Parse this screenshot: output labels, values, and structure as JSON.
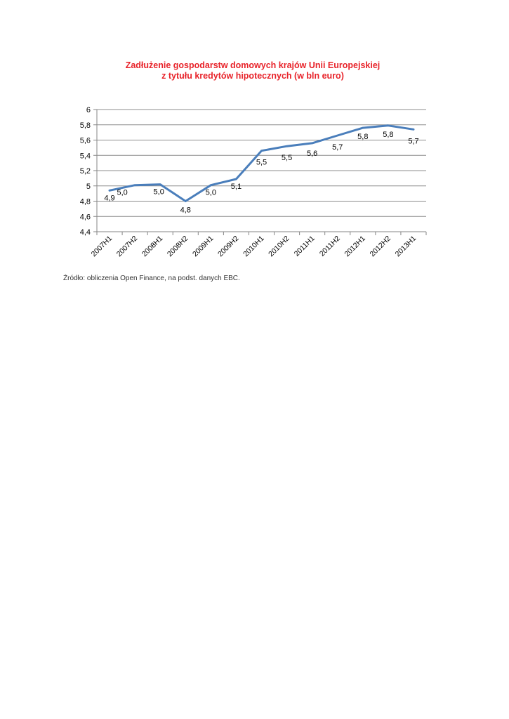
{
  "page": {
    "title_line1": "Zadłużenie gospodarstw domowych krajów Unii Europejskiej",
    "title_line2": "z tytułu kredytów hipotecznych (w bln euro)",
    "source": "Źródło: obliczenia Open Finance, na podst. danych EBC."
  },
  "chart_data": {
    "type": "line",
    "title": "Zadłużenie gospodarstw domowych krajów Unii Europejskiej z tytułu kredytów hipotecznych (w bln euro)",
    "categories": [
      "2007H1",
      "2007H2",
      "2008H1",
      "2008H2",
      "2009H1",
      "2009H2",
      "2010H1",
      "2010H2",
      "2011H1",
      "2011H2",
      "2012H1",
      "2012H2",
      "2013H1"
    ],
    "series": [
      {
        "values": [
          4.94,
          5.01,
          5.02,
          4.8,
          5.01,
          5.09,
          5.46,
          5.52,
          5.56,
          5.66,
          5.76,
          5.79,
          5.74
        ],
        "data_labels": [
          "4,9",
          "5,0",
          "5,0",
          "4,8",
          "5,0",
          "5,1",
          "5,5",
          "5,5",
          "5,6",
          "5,7",
          "5,8",
          "5,8",
          "5,7"
        ],
        "color": "#4a7ebb"
      }
    ],
    "ylim": [
      4.4,
      6.0
    ],
    "yticks": [
      "4,4",
      "4,6",
      "4,8",
      "5",
      "5,2",
      "5,4",
      "5,6",
      "5,8",
      "6"
    ],
    "grid": true,
    "legend": "none"
  }
}
